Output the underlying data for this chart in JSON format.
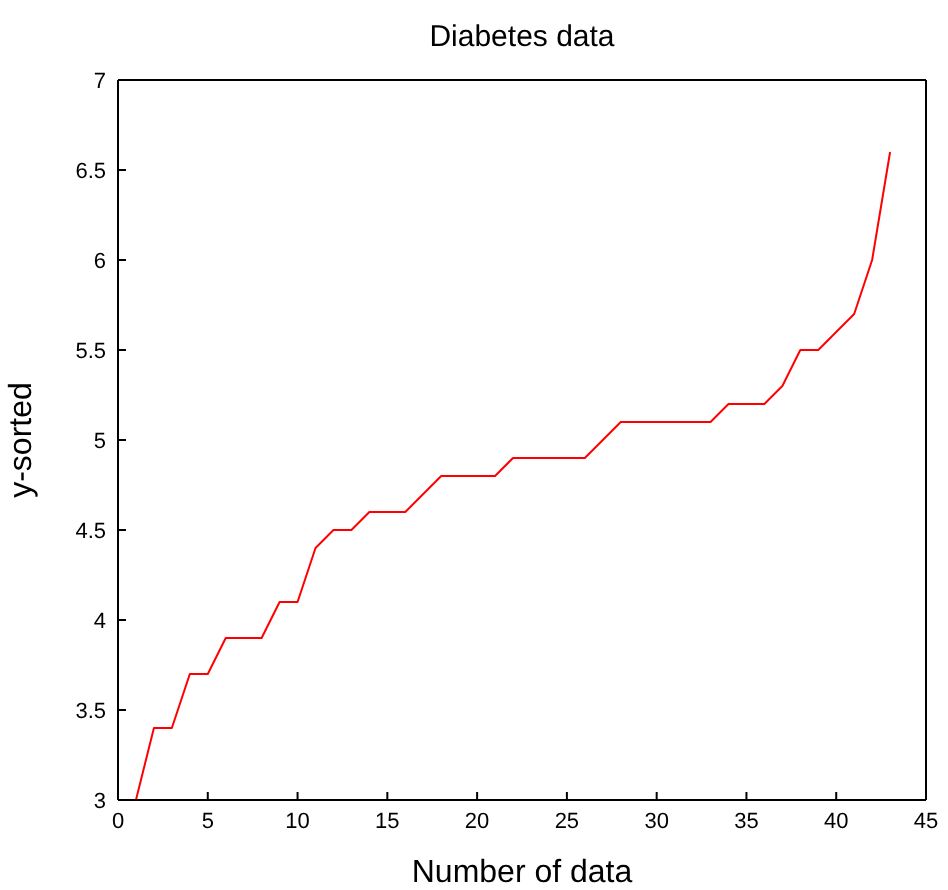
{
  "chart_data": {
    "type": "line",
    "title": "Diabetes data",
    "xlabel": "Number of data",
    "ylabel": "y-sorted",
    "x": [
      1,
      2,
      3,
      4,
      5,
      6,
      7,
      8,
      9,
      10,
      11,
      12,
      13,
      14,
      15,
      16,
      17,
      18,
      19,
      20,
      21,
      22,
      23,
      24,
      25,
      26,
      27,
      28,
      29,
      30,
      31,
      32,
      33,
      34,
      35,
      36,
      37,
      38,
      39,
      40,
      41,
      42,
      43
    ],
    "series": [
      {
        "color": "#ff0000",
        "values": [
          3.0,
          3.4,
          3.4,
          3.7,
          3.7,
          3.9,
          3.9,
          3.9,
          4.1,
          4.1,
          4.4,
          4.5,
          4.5,
          4.6,
          4.6,
          4.6,
          4.7,
          4.8,
          4.8,
          4.8,
          4.8,
          4.9,
          4.9,
          4.9,
          4.9,
          4.9,
          5.0,
          5.1,
          5.1,
          5.1,
          5.1,
          5.1,
          5.1,
          5.2,
          5.2,
          5.2,
          5.3,
          5.5,
          5.5,
          5.6,
          5.7,
          6.0,
          6.6
        ]
      }
    ],
    "xlim": [
      0,
      45
    ],
    "xticks": [
      0,
      5,
      10,
      15,
      20,
      25,
      30,
      35,
      40,
      45
    ],
    "ylim": [
      3,
      7
    ],
    "yticks": [
      3,
      3.5,
      4,
      4.5,
      5,
      5.5,
      6,
      6.5,
      7
    ],
    "grid": false,
    "legend": false,
    "marker": "none",
    "line_style": "solid"
  }
}
